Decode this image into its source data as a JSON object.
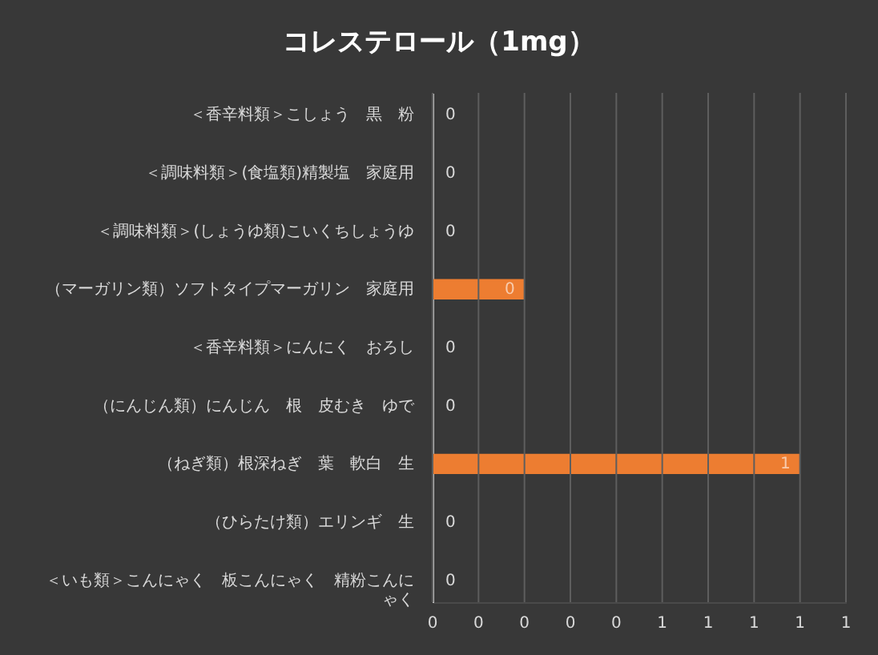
{
  "chart_data": {
    "type": "bar",
    "orientation": "horizontal",
    "title": "コレステロール（1mg）",
    "categories": [
      "＜香辛料類＞こしょう　黒　粉",
      "＜調味料類＞(食塩類)精製塩　家庭用",
      "＜調味料類＞(しょうゆ類)こいくちしょうゆ",
      "（マーガリン類）ソフトタイプマーガリン　家庭用",
      "＜香辛料類＞にんにく　おろし",
      "（にんじん類）にんじん　根　皮むき　ゆで",
      "（ねぎ類）根深ねぎ　葉　軟白　生",
      "（ひらたけ類）エリンギ　生",
      "＜いも類＞こんにゃく　板こんにゃく　精粉こんにゃく"
    ],
    "series": [
      {
        "color": "#ed7d31",
        "values": [
          0,
          0,
          0,
          0.2,
          0,
          0,
          0.8,
          0,
          0
        ],
        "value_labels": [
          "0",
          "0",
          "0",
          "0",
          "0",
          "0",
          "1",
          "0",
          "0"
        ]
      }
    ],
    "xlim": [
      0,
      0.9
    ],
    "xticks": [
      {
        "value": 0,
        "label": "0"
      },
      {
        "value": 0.1,
        "label": "0"
      },
      {
        "value": 0.2,
        "label": "0"
      },
      {
        "value": 0.3,
        "label": "0"
      },
      {
        "value": 0.4,
        "label": "0"
      },
      {
        "value": 0.5,
        "label": "1"
      },
      {
        "value": 0.6,
        "label": "1"
      },
      {
        "value": 0.7,
        "label": "1"
      },
      {
        "value": 0.8,
        "label": "1"
      },
      {
        "value": 0.9,
        "label": "1"
      }
    ],
    "grid": "x",
    "legend": false
  }
}
